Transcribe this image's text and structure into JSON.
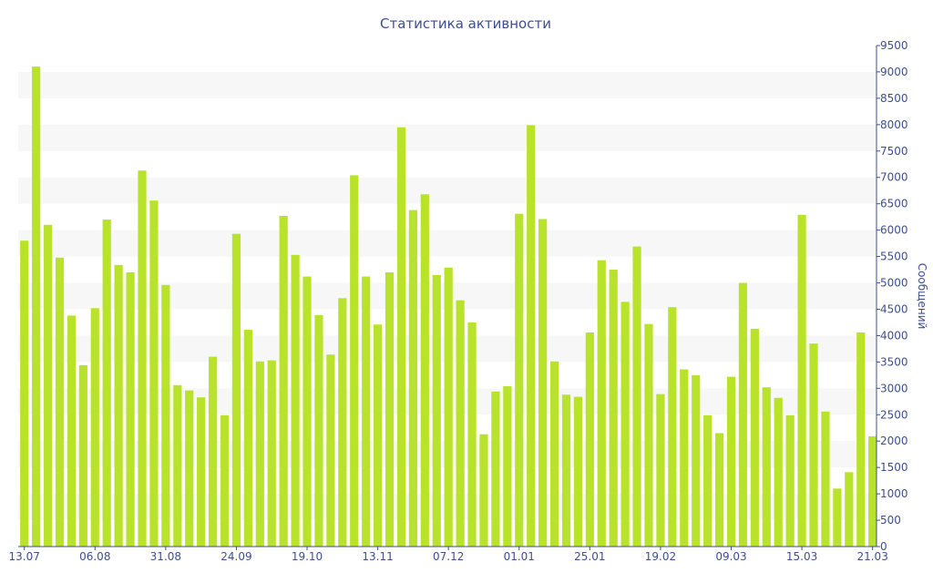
{
  "chart_data": {
    "type": "bar",
    "title": "Статистика активности",
    "ylabel": "Сообщений",
    "xlabel": "",
    "y_axis_side": "right",
    "ylim": [
      0,
      9500
    ],
    "y_ticks": [
      0,
      500,
      1000,
      1500,
      2000,
      2500,
      3000,
      3500,
      4000,
      4500,
      5000,
      5500,
      6000,
      6500,
      7000,
      7500,
      8000,
      8500,
      9000,
      9500
    ],
    "alternating_bands": true,
    "bar_color": "#b9e22a",
    "text_color": "#3d4f8f",
    "x_tick_labels": [
      {
        "label": "13.07",
        "index": 0
      },
      {
        "label": "06.08",
        "index": 6
      },
      {
        "label": "31.08",
        "index": 12
      },
      {
        "label": "24.09",
        "index": 18
      },
      {
        "label": "19.10",
        "index": 24
      },
      {
        "label": "13.11",
        "index": 30
      },
      {
        "label": "07.12",
        "index": 36
      },
      {
        "label": "01.01",
        "index": 42
      },
      {
        "label": "25.01",
        "index": 48
      },
      {
        "label": "19.02",
        "index": 54
      },
      {
        "label": "09.03",
        "index": 60
      },
      {
        "label": "15.03",
        "index": 66
      },
      {
        "label": "21.03",
        "index": 72
      }
    ],
    "values": [
      5800,
      9100,
      6100,
      5480,
      4380,
      3440,
      4520,
      6200,
      5340,
      5200,
      7130,
      6560,
      4960,
      3060,
      2960,
      2830,
      3600,
      2490,
      5930,
      4110,
      3510,
      3530,
      6270,
      5530,
      5120,
      4390,
      3640,
      4710,
      7040,
      5120,
      4210,
      5200,
      7950,
      6380,
      6680,
      5150,
      5290,
      4670,
      4250,
      2130,
      2940,
      3040,
      6310,
      7990,
      6210,
      3510,
      2880,
      2840,
      4060,
      5430,
      5250,
      4640,
      5690,
      4220,
      2890,
      4540,
      3360,
      3250,
      2490,
      2150,
      3220,
      5000,
      4130,
      3020,
      2820,
      2490,
      6290,
      3850,
      2560,
      1100,
      1410,
      4060,
      2090
    ]
  }
}
